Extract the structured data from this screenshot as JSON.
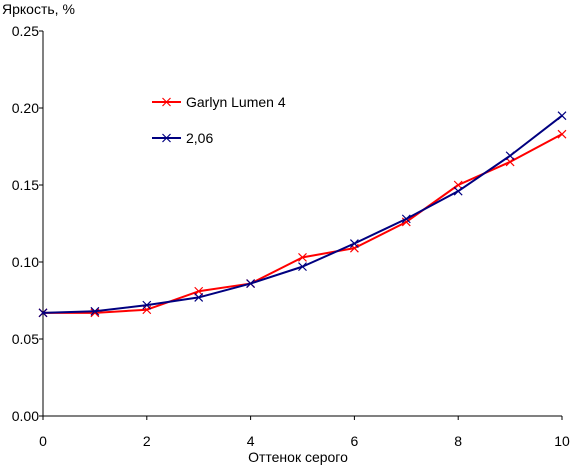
{
  "chart_data": {
    "type": "line",
    "title": "",
    "xlabel": "Оттенок серого",
    "ylabel": "Яркость, %",
    "xlim": [
      0,
      10
    ],
    "ylim": [
      0,
      0.25
    ],
    "x_ticks": [
      "0",
      "2",
      "4",
      "6",
      "8",
      "10"
    ],
    "y_ticks": [
      "0.00",
      "0.05",
      "0.10",
      "0.15",
      "0.20",
      "0.25"
    ],
    "grid": false,
    "legend_position": "top-left-inside",
    "marker": "x",
    "x": [
      0,
      1,
      2,
      3,
      4,
      5,
      6,
      7,
      8,
      9,
      10
    ],
    "series": [
      {
        "name": "Garlyn Lumen 4",
        "color": "#ff0000",
        "values": [
          0.067,
          0.067,
          0.069,
          0.081,
          0.086,
          0.103,
          0.109,
          0.126,
          0.15,
          0.165,
          0.183
        ]
      },
      {
        "name": "2,06",
        "color": "#000080",
        "values": [
          0.067,
          0.068,
          0.072,
          0.077,
          0.086,
          0.097,
          0.112,
          0.128,
          0.146,
          0.169,
          0.195
        ]
      }
    ]
  }
}
